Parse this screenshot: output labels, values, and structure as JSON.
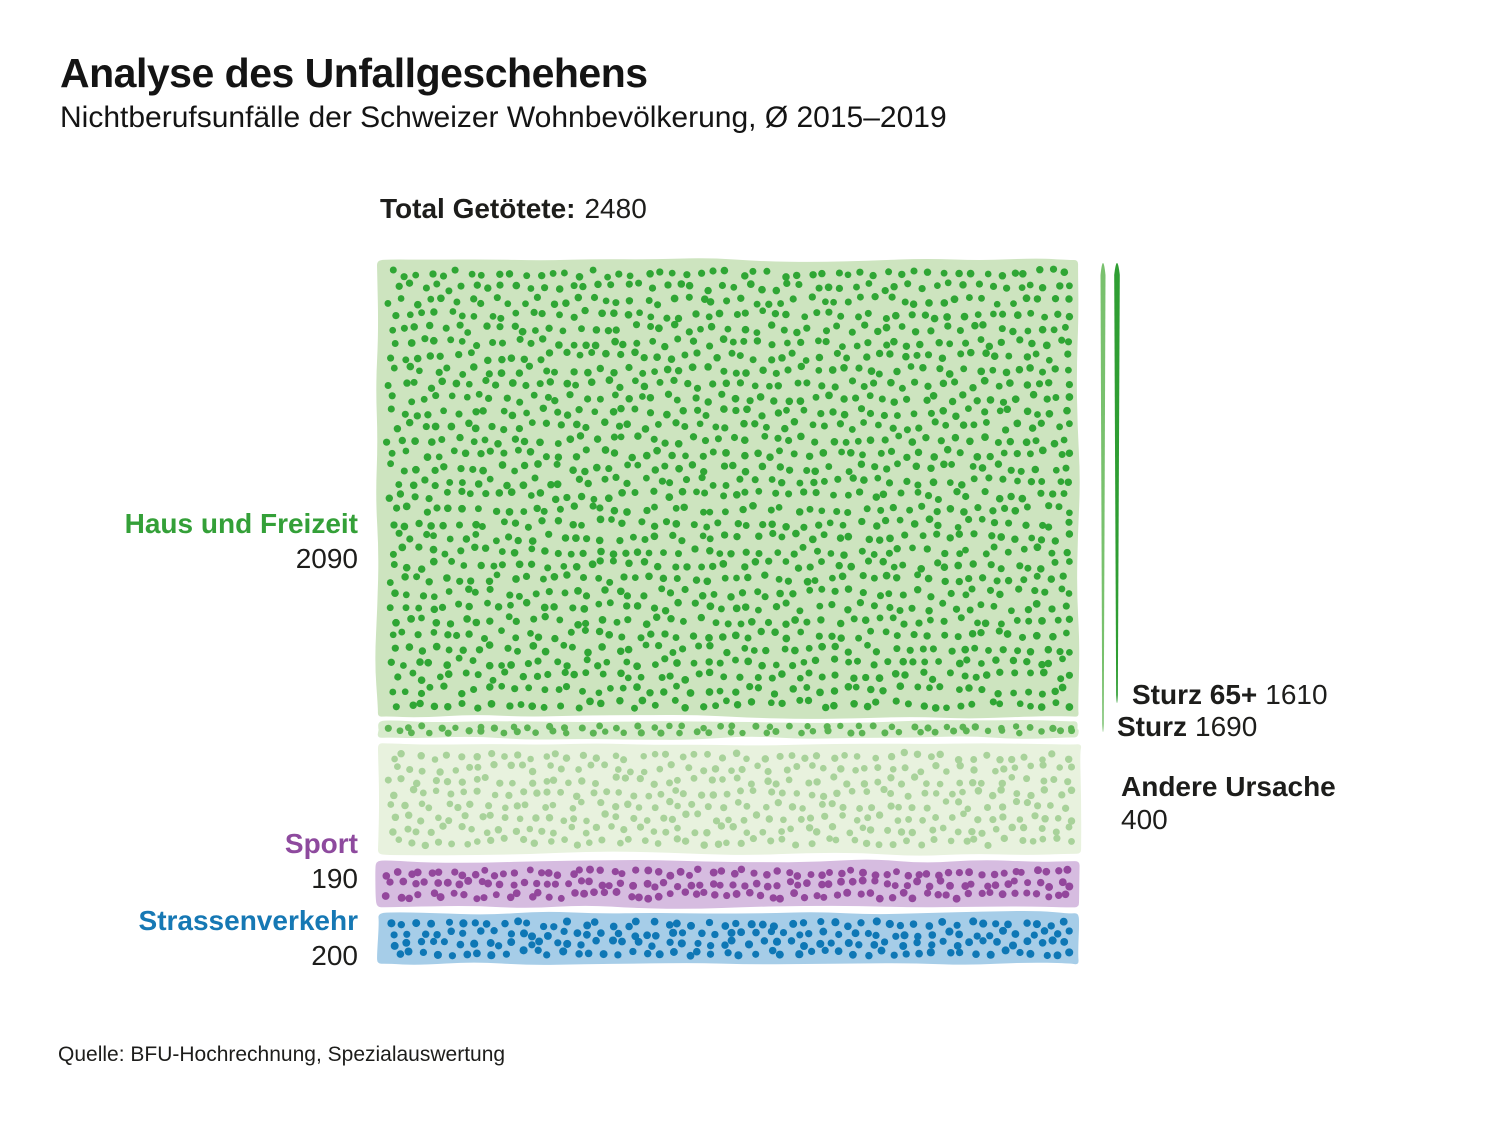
{
  "header": {
    "title": "Analyse des Unfallgeschehens",
    "subtitle": "Nichtberufsunfälle der Schweizer Wohnbevölkerung, Ø 2015–2019"
  },
  "source": "Quelle: BFU-Hochrechnung, Spezialauswertung",
  "chart_data": {
    "type": "dot-matrix",
    "title": "Analyse des Unfallgeschehens",
    "subtitle": "Nichtberufsunfälle der Schweizer Wohnbevölkerung, Ø 2015–2019",
    "unit": "1 dot = 1 person",
    "total": {
      "label": "Total Getötete:",
      "value": 2480
    },
    "categories": [
      {
        "id": "haus_und_freizeit",
        "label": "Haus und Freizeit",
        "value": 2090,
        "label_color": "#34a038",
        "dot_color": "#2fa634",
        "bg_color": "#cde4bf"
      },
      {
        "id": "sport",
        "label": "Sport",
        "value": 190,
        "label_color": "#8e4a9e",
        "dot_color": "#93479c",
        "bg_color": "#d6bce0"
      },
      {
        "id": "strassenverkehr",
        "label": "Strassenverkehr",
        "value": 200,
        "label_color": "#1678b4",
        "dot_color": "#0e77b5",
        "bg_color": "#a6cde8"
      }
    ],
    "haus_breakdown": [
      {
        "id": "sturz_65plus",
        "label": "Sturz 65+",
        "value": 1610
      },
      {
        "id": "sturz",
        "label": "Sturz",
        "value": 1690
      },
      {
        "id": "andere_ursache",
        "label": "Andere Ursache",
        "value": 400
      }
    ],
    "colors": {
      "sturz_band_dot": "#5bb453",
      "sturz_band_bg": "#d7ebcc",
      "andere_dot": "#a8d29a",
      "andere_bg": "#e8f2de",
      "bracket_line_sturz": "#79c16e",
      "bracket_line_sturz65": "#2f9e33"
    },
    "legend_position": "left-and-right-annotations",
    "grid": false
  }
}
